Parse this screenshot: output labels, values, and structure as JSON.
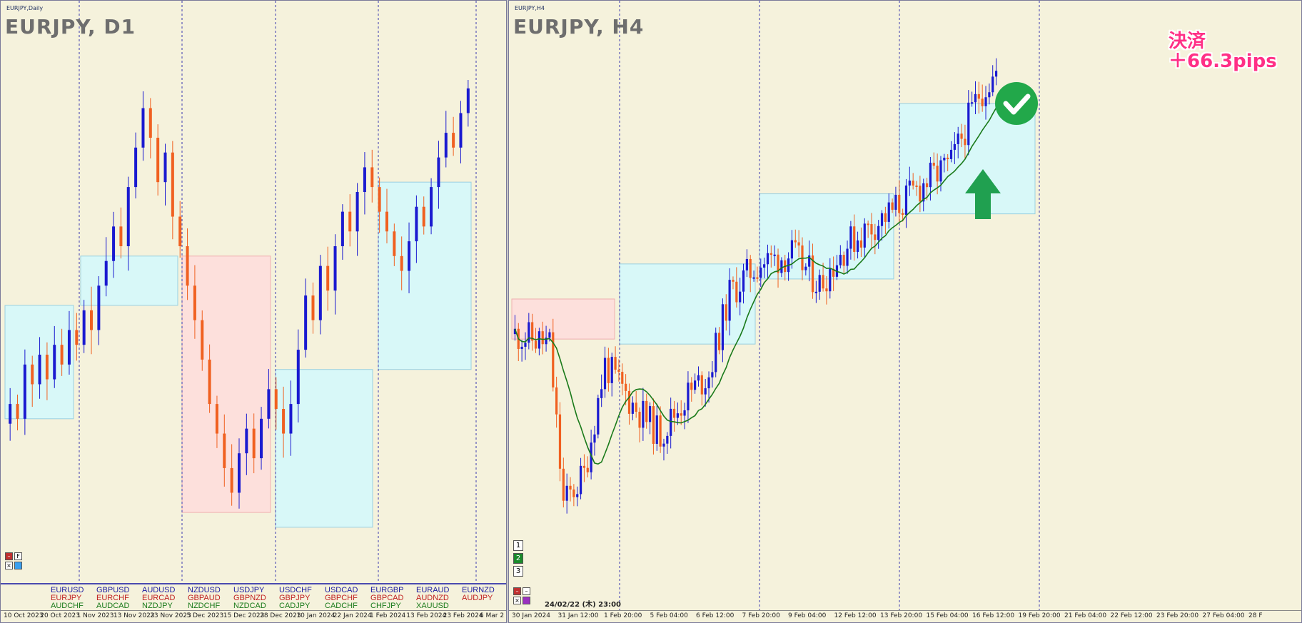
{
  "left": {
    "window_title": "EURJPY,Daily",
    "chart_label": "EURJPY, D1",
    "dates": [
      "10 Oct 2023",
      "20 Oct 2023",
      "1 Nov 2023",
      "13 Nov 2023",
      "23 Nov 2023",
      "5 Dec 2023",
      "15 Dec 2023",
      "28 Dec 2023",
      "10 Jan 2024",
      "22 Jan 2024",
      "1 Feb 2024",
      "13 Feb 2024",
      "23 Feb 2024",
      "6 Mar 2"
    ],
    "symbols": [
      [
        "EURUSD",
        "EURJPY",
        "AUDCHF"
      ],
      [
        "GBPUSD",
        "EURCHF",
        "AUDCAD"
      ],
      [
        "AUDUSD",
        "EURCAD",
        "NZDJPY"
      ],
      [
        "NZDUSD",
        "GBPAUD",
        "NZDCHF"
      ],
      [
        "USDJPY",
        "GBPNZD",
        "NZDCAD"
      ],
      [
        "USDCHF",
        "GBPJPY",
        "CADJPY"
      ],
      [
        "USDCAD",
        "GBPCHF",
        "CADCHF"
      ],
      [
        "EURGBP",
        "GBPCAD",
        "CHFJPY"
      ],
      [
        "EURAUD",
        "AUDNZD",
        "XAUUSD"
      ],
      [
        "EURNZD",
        "AUDJPY",
        ""
      ]
    ],
    "button_labels": [
      "F"
    ]
  },
  "right": {
    "window_title": "EURJPY,H4",
    "chart_label": "EURJPY, H4",
    "dates": [
      "30 Jan 2024",
      "31 Jan 12:00",
      "1 Feb 20:00",
      "5 Feb 04:00",
      "6 Feb 12:00",
      "7 Feb 20:00",
      "9 Feb 04:00",
      "12 Feb 12:00",
      "13 Feb 20:00",
      "15 Feb 04:00",
      "16 Feb 12:00",
      "19 Feb 20:00",
      "21 Feb 04:00",
      "22 Feb 12:00",
      "23 Feb 20:00",
      "27 Feb 04:00",
      "28 F"
    ],
    "datetime": "24/02/22 (木) 23:00",
    "settlement_line1": "決済",
    "settlement_line2": "＋66.3pips",
    "tf_buttons": [
      "1",
      "2",
      "3"
    ]
  },
  "colors": {
    "background": "#f5f2dc",
    "bull": "#1a1ad0",
    "bear": "#f06020",
    "range_box": "#d8f8f8",
    "bear_box": "#fde0dc",
    "ma": "#1a7a1a",
    "arrow": "#20a050",
    "check": "#22a84a"
  },
  "chart_data": [
    {
      "type": "candlestick",
      "title": "EURJPY, D1",
      "x_ticks": [
        "10 Oct 2023",
        "20 Oct 2023",
        "1 Nov 2023",
        "13 Nov 2023",
        "23 Nov 2023",
        "5 Dec 2023",
        "15 Dec 2023",
        "28 Dec 2023",
        "10 Jan 2024",
        "22 Jan 2024",
        "1 Feb 2024",
        "13 Feb 2024",
        "23 Feb 2024",
        "6 Mar 2"
      ],
      "price_range": [
        154.0,
        165.0
      ],
      "candles_close": [
        157.4,
        157.1,
        158.2,
        157.8,
        158.4,
        157.9,
        158.6,
        158.2,
        158.9,
        158.6,
        159.3,
        158.9,
        159.8,
        160.3,
        161.0,
        160.6,
        161.8,
        162.6,
        163.4,
        162.8,
        161.9,
        162.5,
        161.2,
        160.6,
        159.8,
        159.1,
        158.3,
        157.4,
        156.8,
        156.1,
        155.6,
        156.4,
        156.9,
        156.3,
        157.1,
        157.7,
        157.3,
        156.8,
        157.4,
        158.5,
        159.6,
        159.1,
        160.2,
        159.7,
        160.6,
        161.3,
        160.9,
        161.7,
        162.2,
        161.8,
        161.3,
        160.9,
        160.4,
        160.1,
        160.7,
        161.4,
        161.0,
        161.8,
        162.4,
        162.9,
        162.6,
        163.3,
        163.8
      ],
      "range_boxes": [
        "blue",
        "blue",
        "pink",
        "blue",
        "blue"
      ]
    },
    {
      "type": "candlestick",
      "title": "EURJPY, H4",
      "x_ticks": [
        "30 Jan 2024",
        "31 Jan 12:00",
        "1 Feb 20:00",
        "5 Feb 04:00",
        "6 Feb 12:00",
        "7 Feb 20:00",
        "9 Feb 04:00",
        "12 Feb 12:00",
        "13 Feb 20:00",
        "15 Feb 04:00",
        "16 Feb 12:00",
        "19 Feb 20:00",
        "21 Feb 04:00",
        "22 Feb 12:00",
        "23 Feb 20:00",
        "27 Feb 04:00",
        "28 F"
      ],
      "price_range": [
        158.6,
        163.8
      ],
      "annotation": "決済 ＋66.3pips",
      "moving_average": true
    }
  ]
}
